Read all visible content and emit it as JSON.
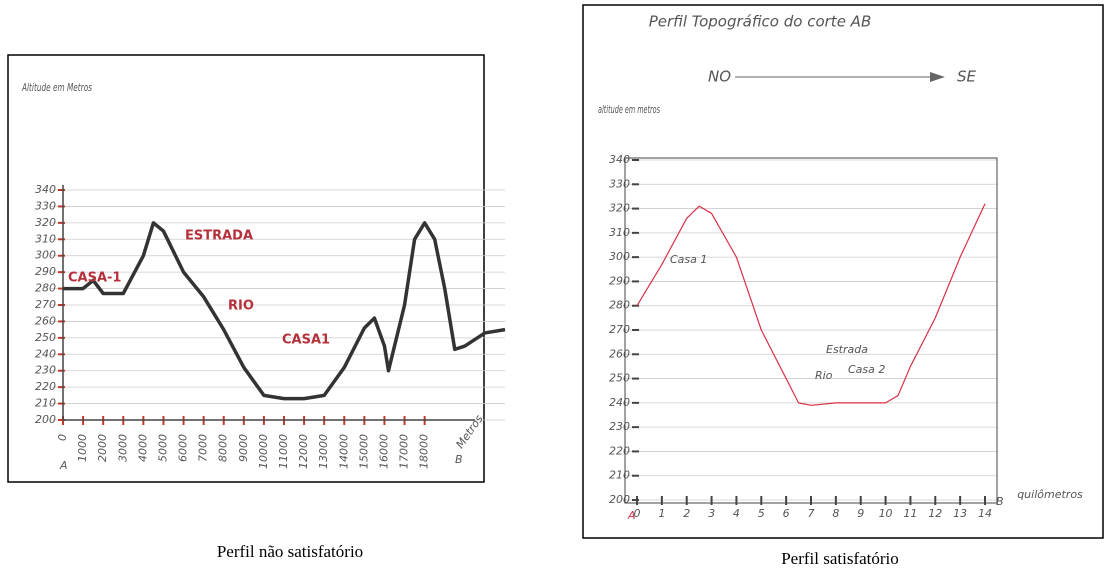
{
  "chart_data": [
    {
      "type": "line",
      "caption": "Perfil não satisfatório",
      "y_label": "Altitude em Metros",
      "x_label": "Metros",
      "start_label": "A",
      "end_label": "B",
      "annotations": [
        "CASA-1",
        "ESTRADA",
        "RIO",
        "CASA1"
      ],
      "x": [
        0,
        1000,
        1500,
        2000,
        3000,
        4000,
        4500,
        5000,
        6000,
        7000,
        8000,
        9000,
        10000,
        11000,
        12000,
        13000,
        14000,
        15000,
        15500,
        16000,
        16200,
        17000,
        17500,
        18000,
        18500,
        19000,
        19500,
        20000,
        21000,
        22000
      ],
      "series": [
        {
          "color": "#333333",
          "values": [
            280,
            280,
            285,
            277,
            277,
            300,
            320,
            315,
            290,
            275,
            255,
            232,
            215,
            213,
            213,
            215,
            232,
            256,
            262,
            245,
            230,
            270,
            310,
            320,
            310,
            280,
            243,
            245,
            253,
            255
          ]
        }
      ],
      "xlim": [
        0,
        22000
      ],
      "xticks": [
        0,
        1000,
        2000,
        3000,
        4000,
        5000,
        6000,
        7000,
        8000,
        9000,
        10000,
        11000,
        12000,
        13000,
        14000,
        15000,
        16000,
        17000,
        18000
      ],
      "ylim": [
        200,
        340
      ],
      "yticks": [
        200,
        210,
        220,
        230,
        240,
        250,
        260,
        270,
        280,
        290,
        300,
        310,
        320,
        330,
        340
      ],
      "grid": true
    },
    {
      "type": "line",
      "caption": "Perfil satisfatório",
      "title": "Perfil Topográfico do corte AB",
      "direction_start": "NO",
      "direction_end": "SE",
      "y_label": "altitude em metros",
      "x_label": "quilômetros",
      "start_label": "A",
      "end_label": "B",
      "annotations": [
        "Casa 1",
        "Estrada",
        "Rio",
        "Casa 2"
      ],
      "x": [
        0,
        1,
        2,
        2.5,
        3,
        4,
        5,
        6,
        6.5,
        7,
        8,
        9,
        10,
        10.5,
        11,
        12,
        13,
        14
      ],
      "series": [
        {
          "color": "#d9314a",
          "values": [
            280,
            297,
            316,
            321,
            318,
            300,
            270,
            250,
            240,
            239,
            240,
            240,
            240,
            243,
            255,
            275,
            300,
            322
          ]
        }
      ],
      "xlim": [
        0,
        14
      ],
      "xticks": [
        0,
        1,
        2,
        3,
        4,
        5,
        6,
        7,
        8,
        9,
        10,
        11,
        12,
        13,
        14
      ],
      "ylim": [
        200,
        340
      ],
      "yticks": [
        200,
        210,
        220,
        230,
        240,
        250,
        260,
        270,
        280,
        290,
        300,
        310,
        320,
        330,
        340
      ],
      "grid": true
    }
  ]
}
